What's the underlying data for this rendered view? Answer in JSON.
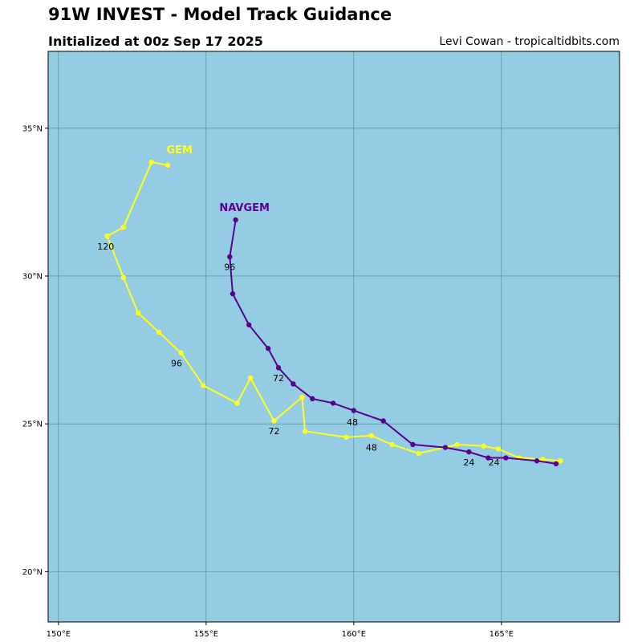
{
  "header": {
    "title": "91W INVEST - Model Track Guidance",
    "subtitle": "Initialized at 00z Sep 17 2025",
    "credit": "Levi Cowan - tropicaltidbits.com"
  },
  "colors": {
    "ocean": "#94cde3",
    "grid": "#2f5f6e",
    "gem": "#ffff1e",
    "navgem": "#5a0090"
  },
  "map": {
    "lon_range": [
      149.65,
      169
    ],
    "lat_range": [
      18.3,
      37.6
    ],
    "lon_ticks": [
      {
        "value": 150,
        "label": "150°E"
      },
      {
        "value": 155,
        "label": "155°E"
      },
      {
        "value": 160,
        "label": "160°E"
      },
      {
        "value": 165,
        "label": "165°E"
      }
    ],
    "lat_ticks": [
      {
        "value": 20,
        "label": "20°N"
      },
      {
        "value": 25,
        "label": "25°N"
      },
      {
        "value": 30,
        "label": "30°N"
      },
      {
        "value": 35,
        "label": "35°N"
      }
    ]
  },
  "chart_data": {
    "type": "scatter",
    "xlabel": "",
    "ylabel": "",
    "grid": true,
    "series": [
      {
        "name": "GEM",
        "color_key": "gem",
        "points": [
          [
            167.0,
            23.75
          ],
          [
            166.4,
            23.8
          ],
          [
            165.6,
            23.85
          ],
          [
            164.9,
            24.15
          ],
          [
            164.4,
            24.25
          ],
          [
            163.5,
            24.3
          ],
          [
            162.2,
            24.0
          ],
          [
            161.3,
            24.3
          ],
          [
            160.6,
            24.6
          ],
          [
            159.75,
            24.55
          ],
          [
            158.35,
            24.75
          ],
          [
            158.25,
            25.9
          ],
          [
            157.3,
            25.1
          ],
          [
            156.5,
            26.55
          ],
          [
            156.05,
            25.7
          ],
          [
            154.9,
            26.3
          ],
          [
            154.15,
            27.4
          ],
          [
            153.4,
            28.1
          ],
          [
            152.7,
            28.75
          ],
          [
            152.2,
            29.95
          ],
          [
            151.65,
            31.35
          ],
          [
            152.2,
            31.65
          ],
          [
            153.15,
            33.85
          ],
          [
            153.7,
            33.75
          ]
        ],
        "labels": [
          {
            "text": "24",
            "lon": 164.75,
            "lat": 23.6
          },
          {
            "text": "48",
            "lon": 160.6,
            "lat": 24.1
          },
          {
            "text": "72",
            "lon": 157.3,
            "lat": 24.65
          },
          {
            "text": "96",
            "lon": 154.0,
            "lat": 26.95
          },
          {
            "text": "120",
            "lon": 151.6,
            "lat": 30.9
          }
        ],
        "name_label": {
          "lon": 154.1,
          "lat": 34.15
        }
      },
      {
        "name": "NAVGEM",
        "color_key": "navgem",
        "points": [
          [
            166.85,
            23.65
          ],
          [
            166.2,
            23.75
          ],
          [
            165.15,
            23.85
          ],
          [
            164.55,
            23.85
          ],
          [
            163.9,
            24.05
          ],
          [
            163.1,
            24.2
          ],
          [
            162.0,
            24.3
          ],
          [
            161.0,
            25.1
          ],
          [
            160.0,
            25.45
          ],
          [
            159.3,
            25.7
          ],
          [
            158.6,
            25.85
          ],
          [
            157.95,
            26.35
          ],
          [
            157.45,
            26.9
          ],
          [
            157.1,
            27.55
          ],
          [
            156.45,
            28.35
          ],
          [
            155.9,
            29.4
          ],
          [
            155.8,
            30.65
          ],
          [
            156.0,
            31.9
          ]
        ],
        "labels": [
          {
            "text": "24",
            "lon": 163.9,
            "lat": 23.6
          },
          {
            "text": "48",
            "lon": 159.95,
            "lat": 24.95
          },
          {
            "text": "72",
            "lon": 157.45,
            "lat": 26.45
          },
          {
            "text": "96",
            "lon": 155.8,
            "lat": 30.2
          }
        ],
        "name_label": {
          "lon": 156.3,
          "lat": 32.2
        }
      }
    ]
  }
}
